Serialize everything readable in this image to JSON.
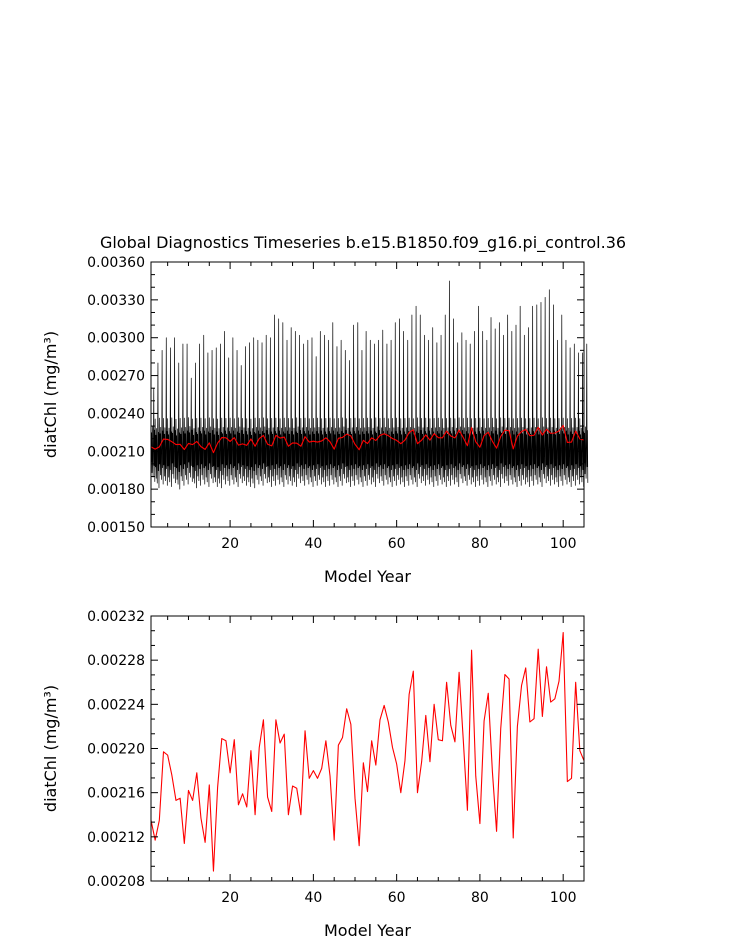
{
  "chart_data": [
    {
      "type": "line",
      "title": "Global Diagnostics Timeseries b.e15.B1850.f09_g16.pi_control.36",
      "xlabel": "Model Year",
      "ylabel": "diatChl (mg/m³)",
      "xlim": [
        1,
        105
      ],
      "ylim": [
        0.0015,
        0.0036
      ],
      "xticks": [
        20,
        40,
        60,
        80,
        100
      ],
      "xtick_labels": [
        "20",
        "40",
        "60",
        "80",
        "100"
      ],
      "yticks": [
        0.0015,
        0.0018,
        0.0021,
        0.0024,
        0.0027,
        0.003,
        0.0033,
        0.0036
      ],
      "ytick_labels": [
        "0.00150",
        "0.00180",
        "0.00210",
        "0.00240",
        "0.00270",
        "0.00300",
        "0.00330",
        "0.00360"
      ],
      "grid": false,
      "series": [
        {
          "color": "#000000",
          "resolution": "monthly",
          "annual_min": [
            0.00186,
            0.00181,
            0.00184,
            0.00183,
            0.00182,
            0.00185,
            0.0018,
            0.00183,
            0.00184,
            0.00186,
            0.00181,
            0.00183,
            0.00184,
            0.00182,
            0.00185,
            0.00182,
            0.00181,
            0.00184,
            0.00183,
            0.00184,
            0.00182,
            0.00185,
            0.00183,
            0.00182,
            0.00181,
            0.00184,
            0.00183,
            0.00185,
            0.00182,
            0.00183,
            0.00184,
            0.00182,
            0.00184,
            0.00183,
            0.00182,
            0.00185,
            0.00183,
            0.00184,
            0.00182,
            0.00183,
            0.00184,
            0.00182,
            0.00183,
            0.00184,
            0.00182,
            0.00183,
            0.00185,
            0.00182,
            0.00183,
            0.00184,
            0.00182,
            0.00183,
            0.00184,
            0.00182,
            0.00185,
            0.00183,
            0.00184,
            0.00182,
            0.00183,
            0.00184,
            0.00182,
            0.00183,
            0.00184,
            0.00182,
            0.00185,
            0.00183,
            0.00184,
            0.00182,
            0.00183,
            0.00184,
            0.00182,
            0.00183,
            0.00184,
            0.00182,
            0.00185,
            0.00183,
            0.00184,
            0.00182,
            0.00183,
            0.00184,
            0.00182,
            0.00183,
            0.00184,
            0.00182,
            0.00185,
            0.00183,
            0.00184,
            0.00182,
            0.00183,
            0.00184,
            0.00182,
            0.00183,
            0.00184,
            0.00182,
            0.00185,
            0.00183,
            0.00184,
            0.00182,
            0.00183,
            0.00184,
            0.00182,
            0.00183,
            0.00184,
            0.00182,
            0.00185
          ],
          "annual_max": [
            0.0026,
            0.0028,
            0.0029,
            0.003,
            0.00292,
            0.003,
            0.0028,
            0.00295,
            0.00295,
            0.00268,
            0.0028,
            0.00295,
            0.00302,
            0.00288,
            0.0029,
            0.00292,
            0.00295,
            0.00305,
            0.00284,
            0.003,
            0.0029,
            0.00278,
            0.00293,
            0.00296,
            0.003,
            0.00298,
            0.00296,
            0.00302,
            0.003,
            0.00318,
            0.00315,
            0.00312,
            0.00298,
            0.00308,
            0.00305,
            0.00302,
            0.00295,
            0.00298,
            0.003,
            0.00285,
            0.00305,
            0.00302,
            0.00298,
            0.00312,
            0.00293,
            0.00298,
            0.0029,
            0.00282,
            0.0031,
            0.00312,
            0.0029,
            0.00305,
            0.00298,
            0.00295,
            0.00298,
            0.00306,
            0.00295,
            0.00298,
            0.00312,
            0.00315,
            0.00305,
            0.00298,
            0.00318,
            0.00325,
            0.00318,
            0.00302,
            0.00298,
            0.00308,
            0.00296,
            0.00302,
            0.00318,
            0.00345,
            0.00315,
            0.00296,
            0.00304,
            0.00298,
            0.00295,
            0.00305,
            0.00325,
            0.00305,
            0.00298,
            0.00316,
            0.00307,
            0.00312,
            0.00302,
            0.00318,
            0.00305,
            0.0031,
            0.00325,
            0.00302,
            0.00308,
            0.00325,
            0.00326,
            0.00328,
            0.00332,
            0.00338,
            0.00326,
            0.00298,
            0.00318,
            0.00298,
            0.00292,
            0.00295,
            0.00288,
            0.00288,
            0.00295
          ]
        },
        {
          "color": "#ff0000",
          "resolution": "annual",
          "x": [
            1,
            2,
            3,
            4,
            5,
            6,
            7,
            8,
            9,
            10,
            11,
            12,
            13,
            14,
            15,
            16,
            17,
            18,
            19,
            20,
            21,
            22,
            23,
            24,
            25,
            26,
            27,
            28,
            29,
            30,
            31,
            32,
            33,
            34,
            35,
            36,
            37,
            38,
            39,
            40,
            41,
            42,
            43,
            44,
            45,
            46,
            47,
            48,
            49,
            50,
            51,
            52,
            53,
            54,
            55,
            56,
            57,
            58,
            59,
            60,
            61,
            62,
            63,
            64,
            65,
            66,
            67,
            68,
            69,
            70,
            71,
            72,
            73,
            74,
            75,
            76,
            77,
            78,
            79,
            80,
            81,
            82,
            83,
            84,
            85,
            86,
            87,
            88,
            89,
            90,
            91,
            92,
            93,
            94,
            95,
            96,
            97,
            98,
            99,
            100,
            101,
            102,
            103,
            104,
            105
          ],
          "values": [
            0.002135,
            0.002117,
            0.002135,
            0.002197,
            0.002194,
            0.002176,
            0.002153,
            0.002155,
            0.002114,
            0.002162,
            0.002153,
            0.002178,
            0.002137,
            0.002115,
            0.002167,
            0.002089,
            0.002165,
            0.002209,
            0.002207,
            0.002178,
            0.002208,
            0.002149,
            0.002159,
            0.002147,
            0.002198,
            0.00214,
            0.002201,
            0.002226,
            0.002156,
            0.002143,
            0.002226,
            0.002205,
            0.002213,
            0.00214,
            0.002166,
            0.002164,
            0.00214,
            0.002216,
            0.002173,
            0.00218,
            0.002173,
            0.002182,
            0.002207,
            0.002175,
            0.002117,
            0.002203,
            0.00221,
            0.002236,
            0.002222,
            0.002155,
            0.002112,
            0.002187,
            0.002161,
            0.002207,
            0.002185,
            0.002226,
            0.002239,
            0.002224,
            0.002201,
            0.002186,
            0.00216,
            0.002189,
            0.002249,
            0.00227,
            0.00216,
            0.002188,
            0.00223,
            0.002188,
            0.00224,
            0.002208,
            0.002207,
            0.00226,
            0.002221,
            0.002206,
            0.002269,
            0.002208,
            0.002144,
            0.002289,
            0.002175,
            0.002132,
            0.002225,
            0.00225,
            0.002179,
            0.002125,
            0.002218,
            0.002267,
            0.002263,
            0.002119,
            0.00222,
            0.002257,
            0.002273,
            0.002224,
            0.002227,
            0.00229,
            0.002229,
            0.002274,
            0.002242,
            0.002245,
            0.002261,
            0.002305,
            0.00217,
            0.002173,
            0.00226,
            0.002198,
            0.002189
          ]
        }
      ]
    },
    {
      "type": "line",
      "xlabel": "Model Year",
      "ylabel": "diatChl (mg/m³)",
      "xlim": [
        1,
        105
      ],
      "ylim": [
        0.00208,
        0.00232
      ],
      "xticks": [
        20,
        40,
        60,
        80,
        100
      ],
      "xtick_labels": [
        "20",
        "40",
        "60",
        "80",
        "100"
      ],
      "yticks": [
        0.00208,
        0.00212,
        0.00216,
        0.0022,
        0.00224,
        0.00228,
        0.00232
      ],
      "ytick_labels": [
        "0.00208",
        "0.00212",
        "0.00216",
        "0.00220",
        "0.00224",
        "0.00228",
        "0.00232"
      ],
      "grid": false,
      "series": [
        {
          "color": "#ff0000",
          "x": [
            1,
            2,
            3,
            4,
            5,
            6,
            7,
            8,
            9,
            10,
            11,
            12,
            13,
            14,
            15,
            16,
            17,
            18,
            19,
            20,
            21,
            22,
            23,
            24,
            25,
            26,
            27,
            28,
            29,
            30,
            31,
            32,
            33,
            34,
            35,
            36,
            37,
            38,
            39,
            40,
            41,
            42,
            43,
            44,
            45,
            46,
            47,
            48,
            49,
            50,
            51,
            52,
            53,
            54,
            55,
            56,
            57,
            58,
            59,
            60,
            61,
            62,
            63,
            64,
            65,
            66,
            67,
            68,
            69,
            70,
            71,
            72,
            73,
            74,
            75,
            76,
            77,
            78,
            79,
            80,
            81,
            82,
            83,
            84,
            85,
            86,
            87,
            88,
            89,
            90,
            91,
            92,
            93,
            94,
            95,
            96,
            97,
            98,
            99,
            100,
            101,
            102,
            103,
            104,
            105
          ],
          "values": [
            0.002135,
            0.002117,
            0.002135,
            0.002197,
            0.002194,
            0.002176,
            0.002153,
            0.002155,
            0.002114,
            0.002162,
            0.002153,
            0.002178,
            0.002137,
            0.002115,
            0.002167,
            0.002089,
            0.002165,
            0.002209,
            0.002207,
            0.002178,
            0.002208,
            0.002149,
            0.002159,
            0.002147,
            0.002198,
            0.00214,
            0.002201,
            0.002226,
            0.002156,
            0.002143,
            0.002226,
            0.002205,
            0.002213,
            0.00214,
            0.002166,
            0.002164,
            0.00214,
            0.002216,
            0.002173,
            0.00218,
            0.002173,
            0.002182,
            0.002207,
            0.002175,
            0.002117,
            0.002203,
            0.00221,
            0.002236,
            0.002222,
            0.002155,
            0.002112,
            0.002187,
            0.002161,
            0.002207,
            0.002185,
            0.002226,
            0.002239,
            0.002224,
            0.002201,
            0.002186,
            0.00216,
            0.002189,
            0.002249,
            0.00227,
            0.00216,
            0.002188,
            0.00223,
            0.002188,
            0.00224,
            0.002208,
            0.002207,
            0.00226,
            0.002221,
            0.002206,
            0.002269,
            0.002208,
            0.002144,
            0.002289,
            0.002175,
            0.002132,
            0.002225,
            0.00225,
            0.002179,
            0.002125,
            0.002218,
            0.002267,
            0.002263,
            0.002119,
            0.00222,
            0.002257,
            0.002273,
            0.002224,
            0.002227,
            0.00229,
            0.002229,
            0.002274,
            0.002242,
            0.002245,
            0.002261,
            0.002305,
            0.00217,
            0.002173,
            0.00226,
            0.002198,
            0.002189
          ]
        }
      ]
    }
  ]
}
